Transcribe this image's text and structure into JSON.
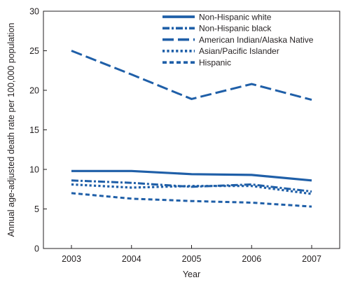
{
  "chart_data": {
    "type": "line",
    "title": "",
    "xlabel": "Year",
    "ylabel": "Annual age-adjusted death rate per 100,000 population",
    "x": [
      "2003",
      "2004",
      "2005",
      "2006",
      "2007"
    ],
    "ylim": [
      0,
      30
    ],
    "yticks": [
      "0",
      "5",
      "10",
      "15",
      "20",
      "25",
      "30"
    ],
    "grid": false,
    "legend_position": "top-right",
    "line_color": "#1f5fa8",
    "series": [
      {
        "name": "Non-Hispanic white",
        "style": "solid",
        "values": [
          9.8,
          9.8,
          9.4,
          9.3,
          8.6
        ]
      },
      {
        "name": "Non-Hispanic black",
        "style": "dash-dot",
        "values": [
          8.6,
          8.3,
          7.8,
          8.1,
          7.2
        ]
      },
      {
        "name": "American Indian/Alaska Native",
        "style": "long-dash",
        "values": [
          25.0,
          22.0,
          18.9,
          20.8,
          18.8
        ]
      },
      {
        "name": "Asian/Pacific Islander",
        "style": "square-dot",
        "values": [
          8.1,
          7.7,
          7.9,
          7.9,
          6.9
        ]
      },
      {
        "name": "Hispanic",
        "style": "short-dash",
        "values": [
          7.0,
          6.3,
          6.0,
          5.8,
          5.3
        ]
      }
    ]
  }
}
